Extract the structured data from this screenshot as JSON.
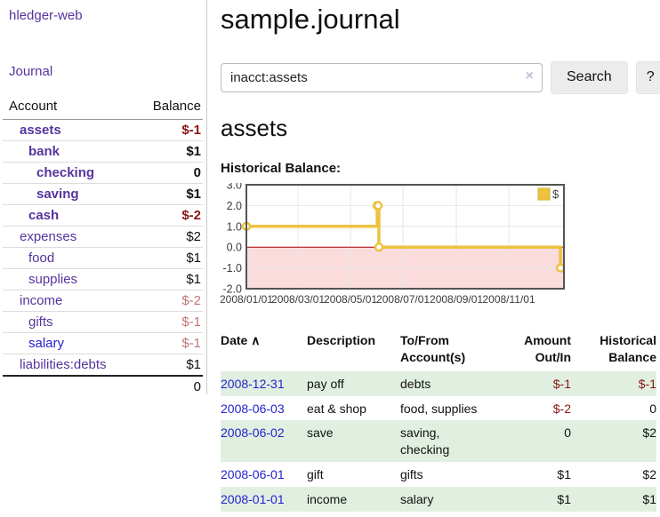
{
  "colors": {
    "accent_purple": "#56349c",
    "link_blue": "#2323cf",
    "negative_strong": "#8b1414",
    "negative_muted": "#c07575",
    "row_green": "#e1efe1",
    "button_gray": "#ececec"
  },
  "sidebar": {
    "brand": "hledger-web",
    "nav_journal": "Journal",
    "accounts_table": {
      "headers": [
        "Account",
        "Balance"
      ],
      "rows": [
        {
          "account": "assets",
          "balance": "$-1",
          "indent": 1,
          "bold": true,
          "balance_style": "neg-strong"
        },
        {
          "account": "bank",
          "balance": "$1",
          "indent": 2,
          "bold": true,
          "balance_style": "pos"
        },
        {
          "account": "checking",
          "balance": "0",
          "indent": 3,
          "bold": true,
          "balance_style": "pos"
        },
        {
          "account": "saving",
          "balance": "$1",
          "indent": 3,
          "bold": true,
          "balance_style": "pos"
        },
        {
          "account": "cash",
          "balance": "$-2",
          "indent": 2,
          "bold": true,
          "balance_style": "neg-strong"
        },
        {
          "account": "expenses",
          "balance": "$2",
          "indent": 1,
          "bold": false,
          "balance_style": "pos"
        },
        {
          "account": "food",
          "balance": "$1",
          "indent": 2,
          "bold": false,
          "balance_style": "pos"
        },
        {
          "account": "supplies",
          "balance": "$1",
          "indent": 2,
          "bold": false,
          "balance_style": "pos"
        },
        {
          "account": "income",
          "balance": "$-2",
          "indent": 1,
          "bold": false,
          "balance_style": "neg-muted"
        },
        {
          "account": "gifts",
          "balance": "$-1",
          "indent": 2,
          "bold": false,
          "balance_style": "neg-muted"
        },
        {
          "account": "salary",
          "balance": "$-1",
          "indent": 2,
          "bold": false,
          "balance_style": "neg-muted",
          "link_style": "blue"
        },
        {
          "account": "liabilities:debts",
          "balance": "$1",
          "indent": 1,
          "bold": false,
          "balance_style": "pos"
        }
      ],
      "total": "0"
    }
  },
  "header": {
    "title": "sample.journal"
  },
  "search": {
    "value": "inacct:assets",
    "clear_icon": "×",
    "button_label": "Search",
    "help_label": "?"
  },
  "account_page": {
    "title": "assets",
    "section_label": "Historical Balance:"
  },
  "chart_data": {
    "type": "line",
    "title": "Historical Balance",
    "style": "step",
    "x_range": [
      "2008-01-01",
      "2009-01-04"
    ],
    "ylim": [
      -2,
      3
    ],
    "y_ticks": [
      "3.0",
      "2.0",
      "1.0",
      "0.0",
      "-1.0",
      "-2.0"
    ],
    "x_ticks": [
      "2008/01/01",
      "2008/03/01",
      "2008/05/01",
      "2008/07/01",
      "2008/09/01",
      "2008/11/01"
    ],
    "grid": true,
    "legend_position": "top-right",
    "series": [
      {
        "name": "$",
        "color": "#edc240",
        "points": [
          [
            "2008-01-01",
            1
          ],
          [
            "2008-06-01",
            2
          ],
          [
            "2008-06-02",
            2
          ],
          [
            "2008-06-03",
            0
          ],
          [
            "2008-12-31",
            -1
          ]
        ]
      }
    ],
    "grid_color": "#e6e6e6",
    "negative_fill": "#fbdcdc",
    "zero_line_color": "#a40000",
    "border_color": "#545454",
    "legend_box_border": "#d6b13a",
    "axis_label_color": "#3b3b3b"
  },
  "register": {
    "columns": [
      "Date",
      "Description",
      "To/From Account(s)",
      "Amount Out/In",
      "Historical Balance"
    ],
    "sort_icon": "∧",
    "rows": [
      {
        "date": "2008-12-31",
        "description": "pay off",
        "accounts": "debts",
        "amount": "$-1",
        "balance": "$-1"
      },
      {
        "date": "2008-06-03",
        "description": "eat & shop",
        "accounts": "food, supplies",
        "amount": "$-2",
        "balance": "0"
      },
      {
        "date": "2008-06-02",
        "description": "save",
        "accounts": "saving, checking",
        "amount": "0",
        "balance": "$2"
      },
      {
        "date": "2008-06-01",
        "description": "gift",
        "accounts": "gifts",
        "amount": "$1",
        "balance": "$2"
      },
      {
        "date": "2008-01-01",
        "description": "income",
        "accounts": "salary",
        "amount": "$1",
        "balance": "$1"
      }
    ]
  }
}
